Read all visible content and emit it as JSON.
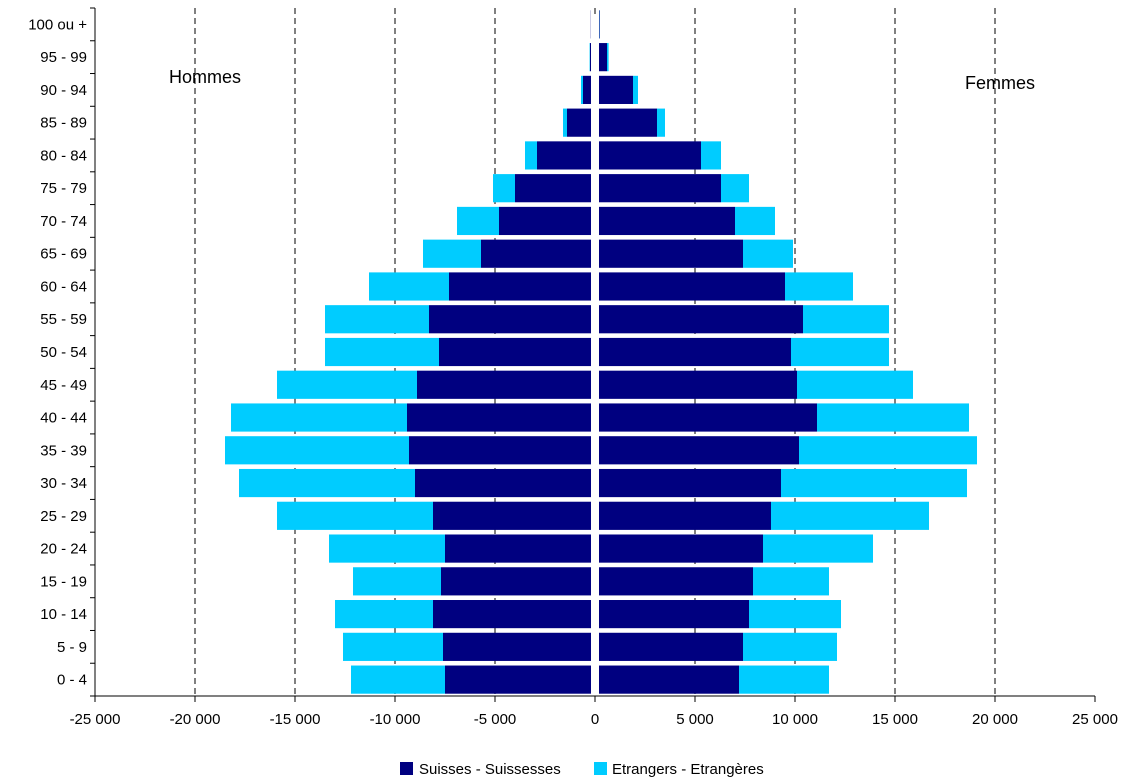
{
  "chart_data": {
    "type": "bar",
    "orientation": "horizontal",
    "stacked": true,
    "subtype": "population-pyramid",
    "categories": [
      "0 - 4",
      "5 - 9",
      "10 - 14",
      "15 - 19",
      "20 - 24",
      "25 - 29",
      "30 - 34",
      "35 - 39",
      "40 - 44",
      "45 - 49",
      "50 - 54",
      "55 - 59",
      "60 - 64",
      "65 - 69",
      "70 - 74",
      "75 - 79",
      "80 - 84",
      "85 - 89",
      "90 - 94",
      "95 - 99",
      "100 ou +"
    ],
    "groups": {
      "hommes": {
        "label": "Hommes",
        "series": [
          {
            "name": "Suisses - Suissesses",
            "color": "#000080",
            "values": [
              -7300,
              -7400,
              -7900,
              -7500,
              -7300,
              -7900,
              -8800,
              -9100,
              -9200,
              -8700,
              -7600,
              -8100,
              -7100,
              -5500,
              -4600,
              -3800,
              -2700,
              -1200,
              -400,
              -50,
              -10
            ]
          },
          {
            "name": "Etrangers - Etrangères",
            "color": "#00CCFF",
            "values": [
              -4700,
              -5000,
              -4900,
              -4400,
              -5800,
              -7800,
              -8800,
              -9200,
              -8800,
              -7000,
              -5700,
              -5200,
              -4000,
              -2900,
              -2100,
              -1100,
              -600,
              -200,
              -100,
              -20,
              0
            ]
          }
        ]
      },
      "femmes": {
        "label": "Femmes",
        "series": [
          {
            "name": "Suisses - Suissesses",
            "color": "#000080",
            "values": [
              7000,
              7200,
              7500,
              7700,
              8200,
              8600,
              9100,
              10000,
              10900,
              9900,
              9600,
              10200,
              9300,
              7200,
              6800,
              6100,
              5100,
              2900,
              1700,
              400,
              30
            ]
          },
          {
            "name": "Etrangers - Etrangères",
            "color": "#00CCFF",
            "values": [
              4500,
              4700,
              4600,
              3800,
              5500,
              7900,
              9300,
              8900,
              7600,
              5800,
              4900,
              4300,
              3400,
              2500,
              2000,
              1400,
              1000,
              400,
              250,
              80,
              10
            ]
          }
        ]
      }
    },
    "xlim": [
      -25000,
      25000
    ],
    "x_ticks": [
      -25000,
      -20000,
      -15000,
      -10000,
      -5000,
      0,
      5000,
      10000,
      15000,
      20000,
      25000
    ],
    "x_tick_labels": [
      "-25 000",
      "-20 000",
      "-15 000",
      "-10 000",
      "-5 000",
      "0",
      "5 000",
      "10 000",
      "15 000",
      "20 000",
      "25 000"
    ],
    "grid": "dashed vertical",
    "legend": {
      "position": "bottom",
      "entries": [
        {
          "label": "Suisses - Suissesses",
          "color": "#000080"
        },
        {
          "label": "Etrangers - Etrangères",
          "color": "#00CCFF"
        }
      ]
    }
  }
}
